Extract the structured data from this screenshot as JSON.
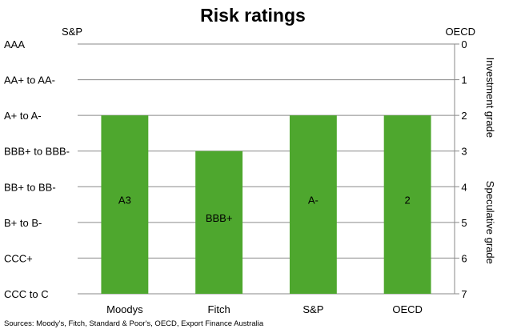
{
  "chart_data": {
    "type": "bar",
    "title": "Risk ratings",
    "left_axis_label": "S&P",
    "right_axis_label": "OECD",
    "left_ticks": [
      "AAA",
      "AA+ to AA-",
      "A+ to A-",
      "BBB+ to BBB-",
      "BB+ to BB-",
      "B+ to B-",
      "CCC+",
      "CCC to C"
    ],
    "right_ticks": [
      "0",
      "1",
      "2",
      "3",
      "4",
      "5",
      "6",
      "7"
    ],
    "ylim": [
      0,
      7
    ],
    "y_inverted": true,
    "grade_bands": [
      {
        "label": "Investment grade",
        "from": 0,
        "to": 3
      },
      {
        "label": "Speculative grade",
        "from": 3,
        "to": 7
      }
    ],
    "categories": [
      "Moodys",
      "Fitch",
      "S&P",
      "OECD"
    ],
    "values": [
      2,
      3,
      2,
      2
    ],
    "bar_labels": [
      "A3",
      "BBB+",
      "A-",
      "2"
    ],
    "bar_color": "#4ea72e",
    "grid": true,
    "source": "Sources: Moody's, Fitch, Standard & Poor's, OECD, Export Finance Australia"
  }
}
